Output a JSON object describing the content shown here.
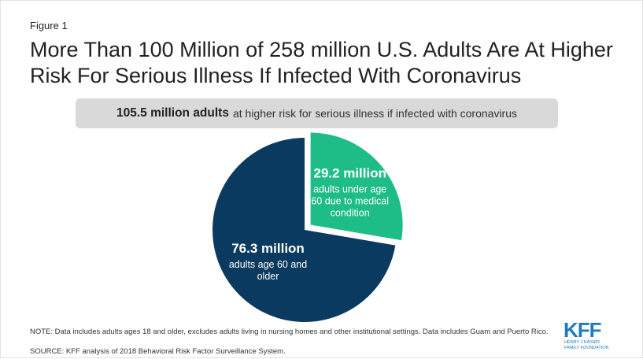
{
  "figure_label": "Figure 1",
  "title": "More Than 100 Million of 258 million U.S. Adults Are At Higher Risk For Serious Illness If Infected With Coronavirus",
  "banner": {
    "bold": "105.5 million adults",
    "rest": "at higher risk for serious illness if infected with coronavirus"
  },
  "chart_data": {
    "type": "pie",
    "slices": [
      {
        "value_label": "29.2 million",
        "label_lines": [
          "adults under age",
          "60 due to medical",
          "condition"
        ],
        "value": 29.2,
        "color": "#1ebd88",
        "exploded": true
      },
      {
        "value_label": "76.3 million",
        "label_lines": [
          "adults age 60 and",
          "older"
        ],
        "value": 76.3,
        "color": "#0b3a60",
        "exploded": false
      }
    ]
  },
  "note": "NOTE: Data includes adults ages 18 and older, excludes adults living in nursing homes and other institutional settings. Data includes Guam and Puerto Rico.",
  "source": "SOURCE: KFF analysis of 2018 Behavioral Risk Factor Surveillance System.",
  "logo": {
    "mark": "KFF",
    "line1": "HENRY J KAISER",
    "line2": "FAMILY FOUNDATION",
    "color": "#1f7bbf"
  }
}
